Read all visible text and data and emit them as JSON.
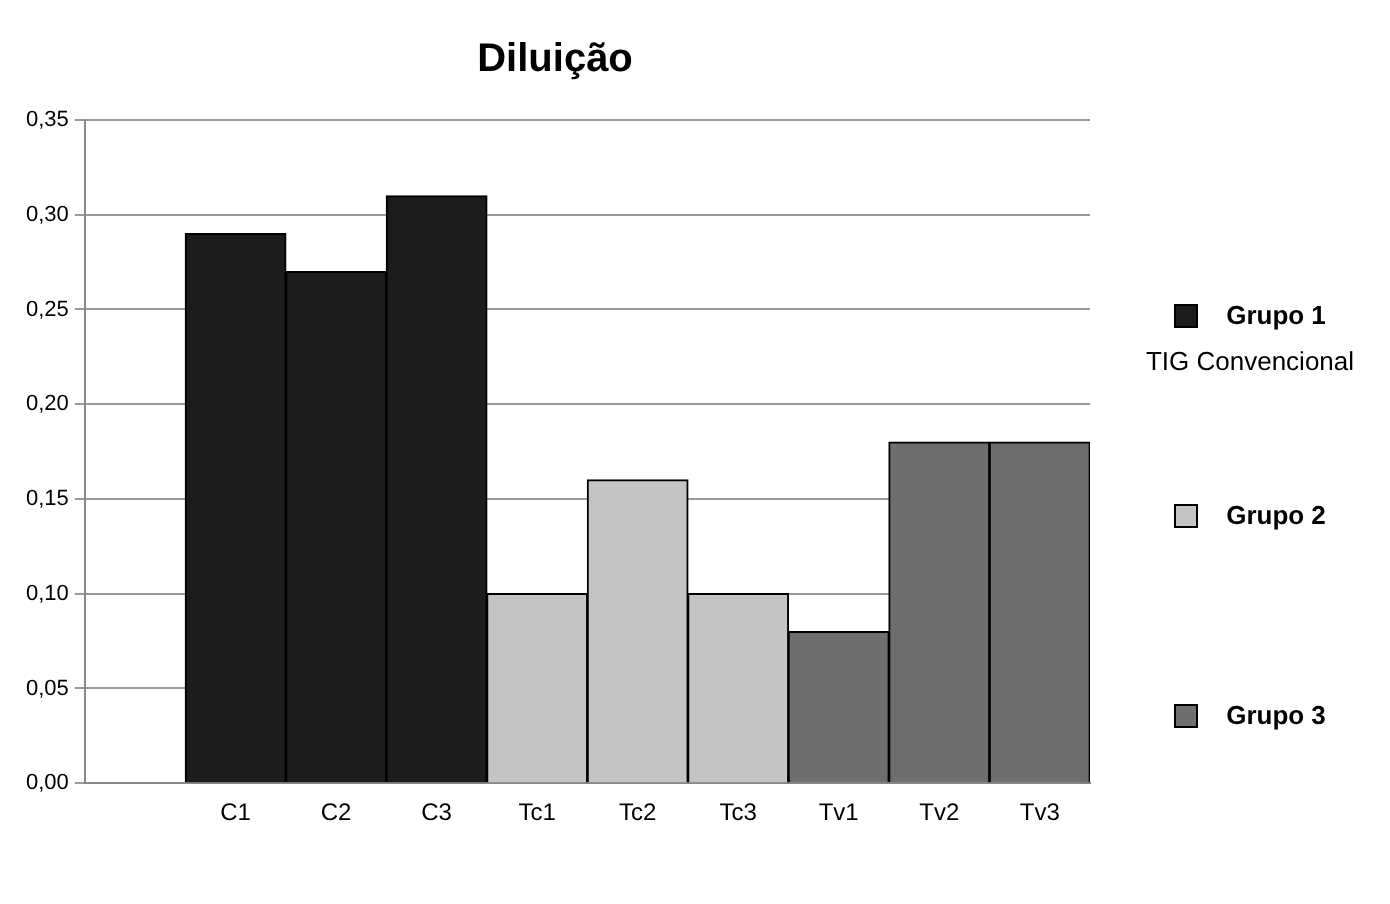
{
  "chart_data": {
    "type": "bar",
    "title": "Diluição",
    "categories": [
      null,
      "C1",
      "C2",
      "C3",
      "Tc1",
      "Tc2",
      "Tc3",
      "Tv1",
      "Tv2",
      "Tv3"
    ],
    "series": [
      {
        "name": "Grupo 1",
        "color": "#1c1c1c",
        "values": [
          null,
          0.29,
          0.27,
          0.31,
          null,
          null,
          null,
          null,
          null,
          null
        ]
      },
      {
        "name": "Grupo 2",
        "color": "#c4c4c4",
        "values": [
          null,
          null,
          null,
          null,
          0.1,
          0.16,
          0.1,
          null,
          null,
          null
        ]
      },
      {
        "name": "Grupo 3",
        "color": "#6e6e6e",
        "values": [
          null,
          null,
          null,
          null,
          null,
          null,
          null,
          0.08,
          0.18,
          0.18
        ]
      }
    ],
    "ylim": [
      0,
      0.35
    ],
    "yticks": [
      {
        "value": 0,
        "label": "0,00"
      },
      {
        "value": 0.05,
        "label": "0,05"
      },
      {
        "value": 0.1,
        "label": "0,10"
      },
      {
        "value": 0.15,
        "label": "0,15"
      },
      {
        "value": 0.2,
        "label": "0,20"
      },
      {
        "value": 0.25,
        "label": "0,25"
      },
      {
        "value": 0.3,
        "label": "0,30"
      },
      {
        "value": 0.35,
        "label": "0,35"
      }
    ],
    "grid": "y",
    "legend": "right",
    "annotations": [
      "TIG Convencional"
    ]
  }
}
